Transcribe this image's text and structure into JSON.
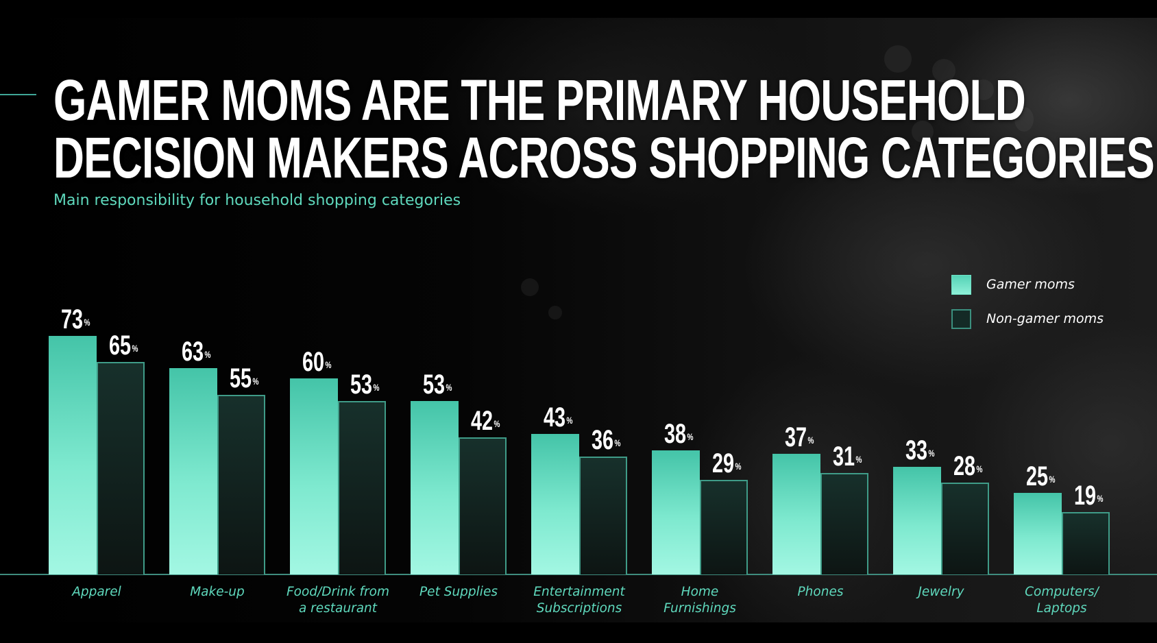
{
  "slide": {
    "title_line1": "GAMER MOMS ARE THE PRIMARY HOUSEHOLD",
    "title_line2": "DECISION MAKERS ACROSS SHOPPING CATEGORIES",
    "subtitle": "Main responsibility for household shopping categories",
    "value_suffix": "%",
    "colors": {
      "gamer": "#7ee9cf",
      "non_gamer": "#142a26",
      "accent": "#5fd9bd",
      "background": "#000000"
    }
  },
  "legend": {
    "items": [
      {
        "label": "Gamer moms",
        "key": "gamer"
      },
      {
        "label": "Non-gamer moms",
        "key": "non"
      }
    ]
  },
  "chart_data": {
    "type": "bar",
    "title": "Gamer moms are the primary household decision makers across shopping categories",
    "subtitle": "Main responsibility for household shopping categories",
    "xlabel": "",
    "ylabel": "",
    "unit": "%",
    "ylim": [
      0,
      80
    ],
    "grid": false,
    "legend_position": "top-right",
    "categories": [
      "Apparel",
      "Make-up",
      "Food/Drink from a restaurant",
      "Pet Supplies",
      "Entertainment Subscriptions",
      "Home Furnishings",
      "Phones",
      "Jewelry",
      "Computers/ Laptops"
    ],
    "category_lines": [
      [
        "Apparel"
      ],
      [
        "Make-up"
      ],
      [
        "Food/Drink from",
        "a restaurant"
      ],
      [
        "Pet Supplies"
      ],
      [
        "Entertainment",
        "Subscriptions"
      ],
      [
        "Home",
        "Furnishings"
      ],
      [
        "Phones"
      ],
      [
        "Jewelry"
      ],
      [
        "Computers/",
        "Laptops"
      ]
    ],
    "series": [
      {
        "name": "Gamer moms",
        "values": [
          73,
          63,
          60,
          53,
          43,
          38,
          37,
          33,
          25
        ]
      },
      {
        "name": "Non-gamer moms",
        "values": [
          65,
          55,
          53,
          42,
          36,
          29,
          31,
          28,
          19
        ]
      }
    ]
  }
}
